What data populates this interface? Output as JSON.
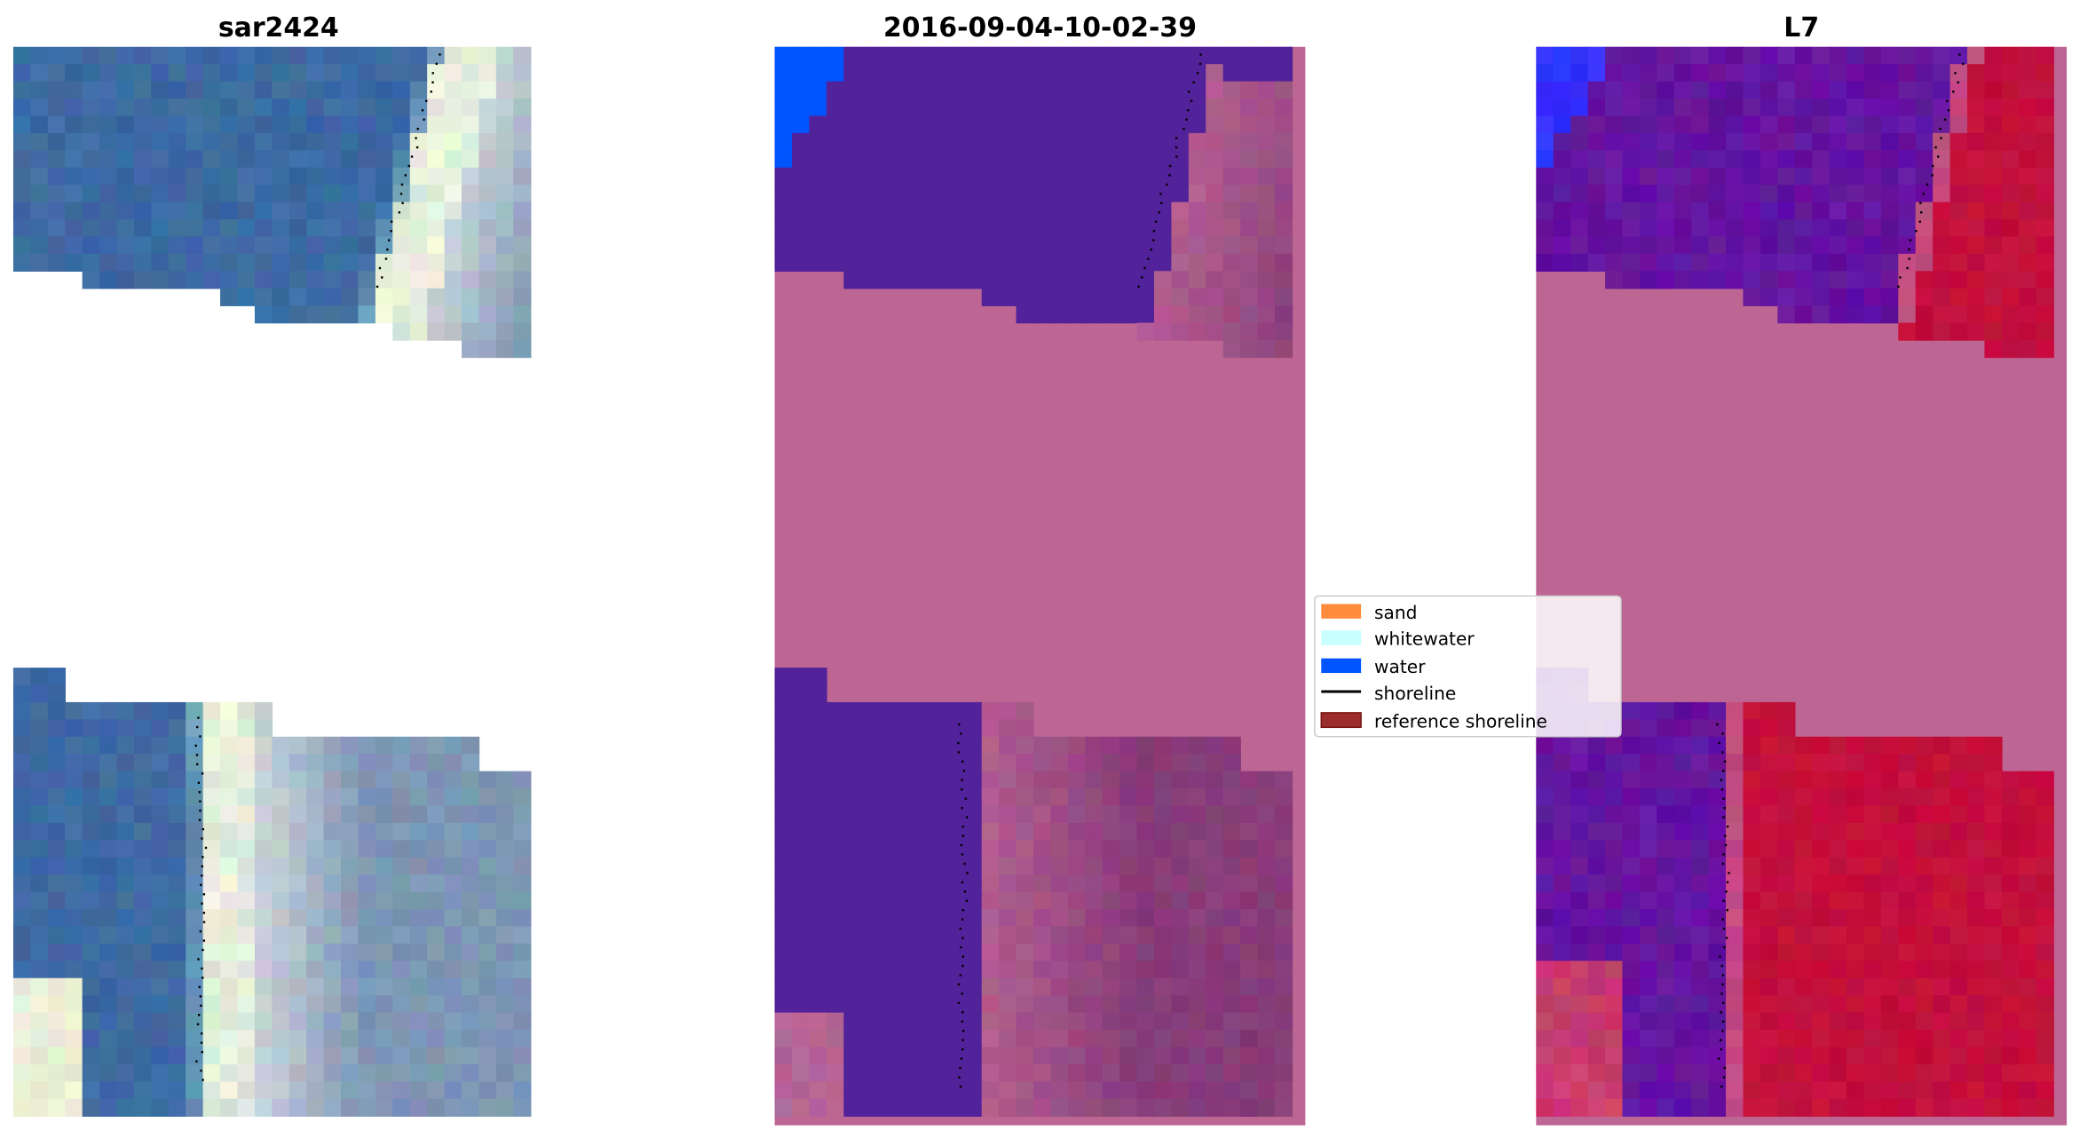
{
  "panels": [
    {
      "title": "sar2424"
    },
    {
      "title": "2016-09-04-10-02-39"
    },
    {
      "title": "L7"
    }
  ],
  "legend": {
    "items": [
      {
        "label": "sand",
        "color": "#ff8c3c",
        "kind": "patch"
      },
      {
        "label": "whitewater",
        "color": "#c8ffff",
        "kind": "patch"
      },
      {
        "label": "water",
        "color": "#0055ff",
        "kind": "patch"
      },
      {
        "label": "shoreline",
        "color": "#000000",
        "kind": "line"
      },
      {
        "label": "reference shoreline",
        "color": "#9b2c2c",
        "kind": "patch"
      }
    ]
  },
  "colors": {
    "classified_background": "#bd6694",
    "classified_water_overlay": "#52229a",
    "rgb_water": "#3d6aa3"
  }
}
